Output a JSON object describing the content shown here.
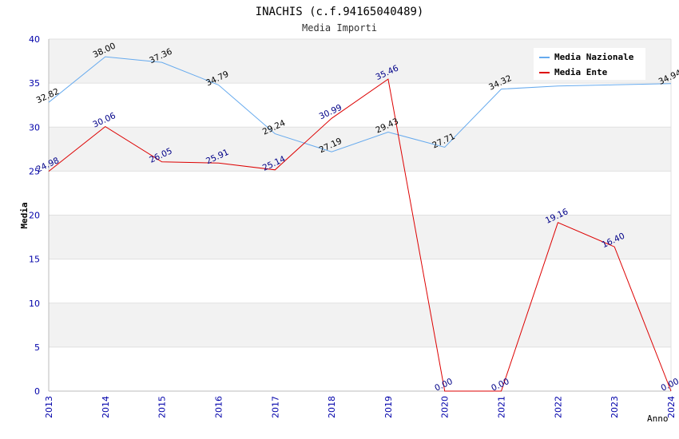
{
  "chart_data": {
    "type": "line",
    "title": "INACHIS (c.f.94165040489)",
    "subtitle": "Media Importi",
    "xlabel": "Anno",
    "ylabel": "Media",
    "ylim": [
      0,
      40
    ],
    "yticks": [
      "0",
      "5",
      "10",
      "15",
      "20",
      "25",
      "30",
      "35",
      "40"
    ],
    "categories": [
      "2013",
      "2014",
      "2015",
      "2016",
      "2017",
      "2018",
      "2019",
      "2020",
      "2021",
      "2022",
      "2023",
      "2024"
    ],
    "grid": true,
    "legend_position": "top-right",
    "series": [
      {
        "name": "Media Nazionale",
        "color": "#66aaee",
        "label_color": "#000000",
        "values": [
          32.82,
          38.0,
          37.36,
          34.79,
          29.24,
          27.19,
          29.43,
          27.71,
          34.32,
          34.68,
          34.8,
          34.94
        ],
        "labels": [
          "32.82",
          "38.00",
          "37.36",
          "34.79",
          "29.24",
          "27.19",
          "29.43",
          "27.71",
          "34.32",
          null,
          null,
          "34.94"
        ]
      },
      {
        "name": "Media Ente",
        "color": "#dd0000",
        "label_color": "#000088",
        "values": [
          24.98,
          30.06,
          26.05,
          25.91,
          25.14,
          30.99,
          35.46,
          0.0,
          0.0,
          19.16,
          16.4,
          0.0
        ],
        "labels": [
          "24.98",
          "30.06",
          "26.05",
          "25.91",
          "25.14",
          "30.99",
          "35.46",
          "0.00",
          "0.00",
          "19.16",
          "16.40",
          "0.00"
        ]
      }
    ]
  }
}
